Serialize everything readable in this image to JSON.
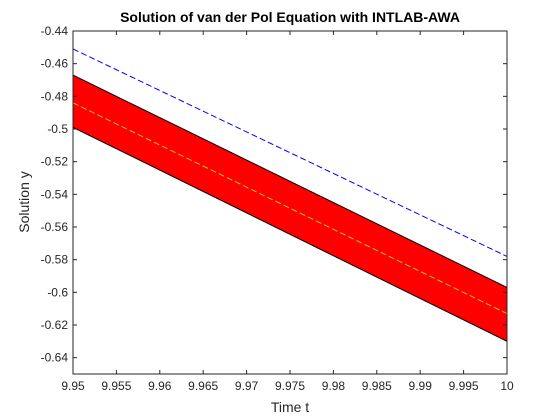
{
  "chart_data": {
    "type": "line",
    "title": "Solution of van der Pol Equation with INTLAB-AWA",
    "xlabel": "Time t",
    "ylabel": "Solution y",
    "xlim": [
      9.95,
      10.0
    ],
    "ylim": [
      -0.65,
      -0.44
    ],
    "xticks": [
      9.95,
      9.955,
      9.96,
      9.965,
      9.97,
      9.975,
      9.98,
      9.985,
      9.99,
      9.995,
      10
    ],
    "xtick_labels": [
      "9.95",
      "9.955",
      "9.96",
      "9.965",
      "9.97",
      "9.975",
      "9.98",
      "9.985",
      "9.99",
      "9.995",
      "10"
    ],
    "yticks": [
      -0.64,
      -0.62,
      -0.6,
      -0.58,
      -0.56,
      -0.54,
      -0.52,
      -0.5,
      -0.48,
      -0.46,
      -0.44
    ],
    "ytick_labels": [
      "-0.64",
      "-0.62",
      "-0.6",
      "-0.58",
      "-0.56",
      "-0.54",
      "-0.52",
      "-0.5",
      "-0.48",
      "-0.46",
      "-0.44"
    ],
    "grid": false,
    "series": [
      {
        "style": "band-upper",
        "color": "#000000",
        "x": [
          9.95,
          10.0
        ],
        "y": [
          -0.467,
          -0.597
        ]
      },
      {
        "style": "band-lower",
        "color": "#000000",
        "x": [
          9.95,
          10.0
        ],
        "y": [
          -0.499,
          -0.63
        ]
      },
      {
        "style": "dashed",
        "color": "#0000ff",
        "x": [
          9.95,
          10.0
        ],
        "y": [
          -0.451,
          -0.578
        ]
      },
      {
        "style": "dashed",
        "color": "#c8c800",
        "x": [
          9.95,
          10.0
        ],
        "y": [
          -0.484,
          -0.613
        ]
      }
    ],
    "band_fill": "#ff0000"
  }
}
